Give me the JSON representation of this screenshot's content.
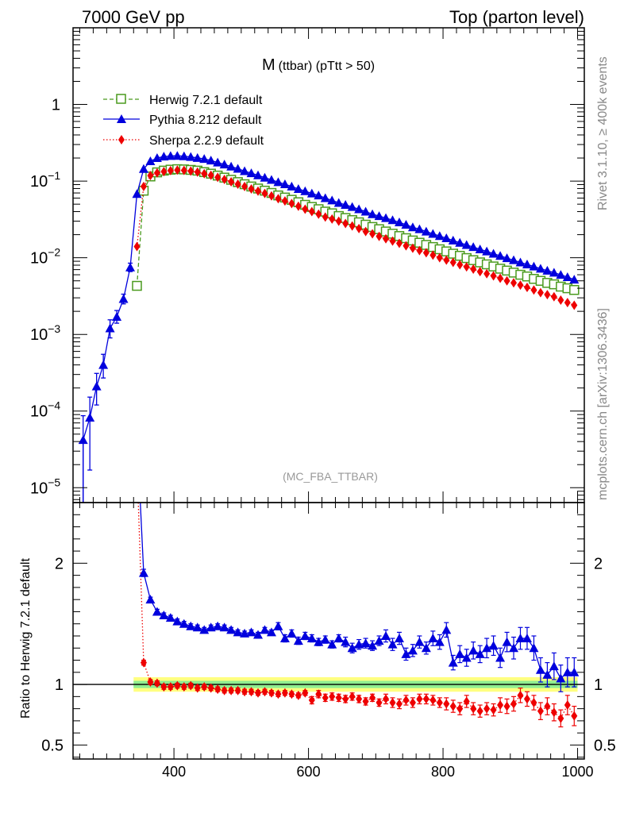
{
  "header": {
    "left": "7000 GeV pp",
    "right": "Top (parton level)"
  },
  "title": {
    "main": "M",
    "sub": "(ttbar) (pTtt > 50)"
  },
  "watermark": "(MC_FBA_TTBAR)",
  "side_text": {
    "top": "Rivet 3.1.10, ≥ 400k events",
    "bottom": "mcplots.cern.ch [arXiv:1306.3436]"
  },
  "ratio_ylabel": "Ratio to Herwig 7.2.1 default",
  "colors": {
    "herwig": "#4a9a1e",
    "pythia": "#0000dd",
    "sherpa": "#ee0000",
    "band_inner": "#90ee90",
    "band_outer": "#ffff80"
  },
  "chart_data": [
    {
      "type": "line",
      "yscale": "log",
      "xlim": [
        250,
        1010
      ],
      "ylim": [
        6.4e-06,
        10
      ],
      "xlabel": "",
      "ylabel": "",
      "legend_position": "top-left",
      "y_ticks": [
        {
          "value": 1e-05,
          "base": "10",
          "exp": "−5"
        },
        {
          "value": 0.0001,
          "base": "10",
          "exp": "−4"
        },
        {
          "value": 0.001,
          "base": "10",
          "exp": "−3"
        },
        {
          "value": 0.01,
          "base": "10",
          "exp": "−2"
        },
        {
          "value": 0.1,
          "base": "10",
          "exp": "−1"
        },
        {
          "value": 1,
          "base": "1",
          "exp": ""
        }
      ],
      "series": [
        {
          "name": "Herwig 7.2.1 default",
          "style": "dashed",
          "marker": "open-square",
          "x": [
            345,
            355,
            365,
            375,
            385,
            395,
            405,
            415,
            425,
            435,
            445,
            455,
            465,
            475,
            485,
            495,
            505,
            515,
            525,
            535,
            545,
            555,
            565,
            575,
            585,
            595,
            605,
            615,
            625,
            635,
            645,
            655,
            665,
            675,
            685,
            695,
            705,
            715,
            725,
            735,
            745,
            755,
            765,
            775,
            785,
            795,
            805,
            815,
            825,
            835,
            845,
            855,
            865,
            875,
            885,
            895,
            905,
            915,
            925,
            935,
            945,
            955,
            965,
            975,
            985,
            995
          ],
          "y": [
            0.0043,
            0.075,
            0.115,
            0.13,
            0.137,
            0.141,
            0.143,
            0.142,
            0.14,
            0.137,
            0.131,
            0.125,
            0.118,
            0.111,
            0.104,
            0.097,
            0.091,
            0.085,
            0.08,
            0.075,
            0.07,
            0.065,
            0.061,
            0.057,
            0.053,
            0.049,
            0.046,
            0.043,
            0.04,
            0.038,
            0.035,
            0.033,
            0.031,
            0.029,
            0.027,
            0.0252,
            0.0236,
            0.022,
            0.0206,
            0.0192,
            0.018,
            0.0168,
            0.0157,
            0.0147,
            0.0138,
            0.0129,
            0.0121,
            0.0113,
            0.0106,
            0.0099,
            0.0093,
            0.0087,
            0.0082,
            0.0077,
            0.0072,
            0.0068,
            0.0064,
            0.006,
            0.0057,
            0.0053,
            0.005,
            0.0047,
            0.0045,
            0.0042,
            0.004,
            0.0038
          ]
        },
        {
          "name": "Pythia 8.212 default",
          "style": "solid",
          "marker": "filled-triangle",
          "x": [
            265,
            275,
            285,
            295,
            305,
            315,
            325,
            335,
            345,
            355,
            365,
            375,
            385,
            395,
            405,
            415,
            425,
            435,
            445,
            455,
            465,
            475,
            485,
            495,
            505,
            515,
            525,
            535,
            545,
            555,
            565,
            575,
            585,
            595,
            605,
            615,
            625,
            635,
            645,
            655,
            665,
            675,
            685,
            695,
            705,
            715,
            725,
            735,
            745,
            755,
            765,
            775,
            785,
            795,
            805,
            815,
            825,
            835,
            845,
            855,
            865,
            875,
            885,
            895,
            905,
            915,
            925,
            935,
            945,
            955,
            965,
            975,
            985,
            995
          ],
          "y": [
            4.2e-05,
            8.2e-05,
            0.00021,
            0.0004,
            0.0012,
            0.0017,
            0.0029,
            0.0075,
            0.068,
            0.144,
            0.182,
            0.2,
            0.209,
            0.213,
            0.214,
            0.211,
            0.207,
            0.201,
            0.195,
            0.186,
            0.175,
            0.165,
            0.155,
            0.145,
            0.135,
            0.127,
            0.119,
            0.111,
            0.104,
            0.097,
            0.091,
            0.085,
            0.079,
            0.074,
            0.069,
            0.065,
            0.06,
            0.056,
            0.052,
            0.049,
            0.046,
            0.043,
            0.04,
            0.037,
            0.035,
            0.033,
            0.031,
            0.029,
            0.027,
            0.025,
            0.0236,
            0.022,
            0.0205,
            0.0192,
            0.018,
            0.0168,
            0.0157,
            0.0147,
            0.0138,
            0.0129,
            0.0121,
            0.0113,
            0.0106,
            0.0099,
            0.0093,
            0.0087,
            0.0082,
            0.0077,
            0.0072,
            0.0068,
            0.0064,
            0.006,
            0.0056,
            0.0052
          ],
          "err_low": [
            4e-05,
            6.5e-05,
            9e-05,
            0.00013,
            0.0003,
            0.0003,
            0.0004,
            0.0009,
            0,
            0,
            0,
            0,
            0,
            0,
            0,
            0,
            0,
            0,
            0,
            0,
            0,
            0,
            0,
            0,
            0,
            0,
            0,
            0,
            0,
            0,
            0,
            0,
            0,
            0,
            0,
            0,
            0,
            0,
            0,
            0,
            0,
            0,
            0,
            0,
            0,
            0,
            0,
            0,
            0,
            0,
            0,
            0,
            0,
            0,
            0,
            0,
            0,
            0,
            0,
            0,
            0,
            0,
            0,
            0,
            0,
            0,
            0,
            0,
            0,
            0,
            0,
            0,
            0,
            0
          ],
          "err_high": [
            4.5e-05,
            7e-05,
            0.0001,
            0.00015,
            0.00035,
            0.00035,
            0.00045,
            0.001,
            0,
            0,
            0,
            0,
            0,
            0,
            0,
            0,
            0,
            0,
            0,
            0,
            0,
            0,
            0,
            0,
            0,
            0,
            0,
            0,
            0,
            0,
            0,
            0,
            0,
            0,
            0,
            0,
            0,
            0,
            0,
            0,
            0,
            0,
            0,
            0,
            0,
            0,
            0,
            0,
            0,
            0,
            0,
            0,
            0,
            0,
            0,
            0,
            0,
            0,
            0,
            0,
            0,
            0,
            0,
            0,
            0,
            0,
            0,
            0,
            0,
            0,
            0,
            0,
            0,
            0
          ]
        },
        {
          "name": "Sherpa 2.2.9 default",
          "style": "dotted",
          "marker": "filled-diamond",
          "x": [
            345,
            355,
            365,
            375,
            385,
            395,
            405,
            415,
            425,
            435,
            445,
            455,
            465,
            475,
            485,
            495,
            505,
            515,
            525,
            535,
            545,
            555,
            565,
            575,
            585,
            595,
            605,
            615,
            625,
            635,
            645,
            655,
            665,
            675,
            685,
            695,
            705,
            715,
            725,
            735,
            745,
            755,
            765,
            775,
            785,
            795,
            805,
            815,
            825,
            835,
            845,
            855,
            865,
            875,
            885,
            895,
            905,
            915,
            925,
            935,
            945,
            955,
            965,
            975,
            985,
            995
          ],
          "y": [
            0.014,
            0.085,
            0.118,
            0.128,
            0.133,
            0.137,
            0.139,
            0.138,
            0.135,
            0.131,
            0.125,
            0.119,
            0.112,
            0.105,
            0.098,
            0.091,
            0.085,
            0.079,
            0.074,
            0.069,
            0.064,
            0.059,
            0.055,
            0.051,
            0.047,
            0.043,
            0.04,
            0.037,
            0.034,
            0.032,
            0.03,
            0.028,
            0.026,
            0.024,
            0.022,
            0.0205,
            0.019,
            0.0177,
            0.0165,
            0.0154,
            0.0143,
            0.0133,
            0.0124,
            0.0116,
            0.0108,
            0.01,
            0.0093,
            0.0087,
            0.0081,
            0.0076,
            0.0071,
            0.0066,
            0.0062,
            0.0058,
            0.0054,
            0.005,
            0.0047,
            0.0044,
            0.0041,
            0.0038,
            0.0035,
            0.0033,
            0.0031,
            0.0028,
            0.0026,
            0.0024
          ]
        }
      ]
    },
    {
      "type": "line",
      "xlim": [
        250,
        1010
      ],
      "ylim": [
        0.385,
        2.5
      ],
      "ylabel": "Ratio to Herwig 7.2.1 default",
      "x_ticks": [
        400,
        600,
        800,
        1000
      ],
      "y_ticks": [
        {
          "value": 0.5,
          "label": "0.5"
        },
        {
          "value": 1,
          "label": "1"
        },
        {
          "value": 2,
          "label": "2"
        }
      ],
      "reference_line": 1,
      "band": {
        "x_start": 340,
        "x_end": 1000,
        "inner": 0.03,
        "outer": 0.06
      },
      "series": [
        {
          "name": "Pythia 8.212 default",
          "x": [
            355,
            365,
            375,
            385,
            395,
            405,
            415,
            425,
            435,
            445,
            455,
            465,
            475,
            485,
            495,
            505,
            515,
            525,
            535,
            545,
            555,
            565,
            575,
            585,
            595,
            605,
            615,
            625,
            635,
            645,
            655,
            665,
            675,
            685,
            695,
            705,
            715,
            725,
            735,
            745,
            755,
            765,
            775,
            785,
            795,
            805,
            815,
            825,
            835,
            845,
            855,
            865,
            875,
            885,
            895,
            905,
            915,
            925,
            935,
            945,
            955,
            965,
            975,
            985,
            995
          ],
          "y": [
            1.92,
            1.7,
            1.6,
            1.57,
            1.55,
            1.52,
            1.5,
            1.48,
            1.47,
            1.45,
            1.47,
            1.48,
            1.47,
            1.45,
            1.43,
            1.42,
            1.43,
            1.41,
            1.45,
            1.43,
            1.48,
            1.38,
            1.42,
            1.36,
            1.4,
            1.38,
            1.35,
            1.37,
            1.33,
            1.38,
            1.35,
            1.3,
            1.33,
            1.34,
            1.32,
            1.36,
            1.4,
            1.33,
            1.38,
            1.25,
            1.28,
            1.35,
            1.3,
            1.38,
            1.35,
            1.45,
            1.18,
            1.25,
            1.22,
            1.28,
            1.25,
            1.3,
            1.32,
            1.22,
            1.35,
            1.3,
            1.38,
            1.38,
            1.3,
            1.12,
            1.08,
            1.15,
            1.05,
            1.1,
            1.1
          ],
          "err": [
            0.03,
            0.02,
            0.02,
            0.02,
            0.02,
            0.02,
            0.02,
            0.02,
            0.02,
            0.02,
            0.02,
            0.02,
            0.02,
            0.02,
            0.02,
            0.02,
            0.02,
            0.02,
            0.02,
            0.02,
            0.03,
            0.03,
            0.03,
            0.03,
            0.03,
            0.03,
            0.03,
            0.03,
            0.03,
            0.03,
            0.04,
            0.04,
            0.04,
            0.04,
            0.04,
            0.04,
            0.05,
            0.05,
            0.05,
            0.05,
            0.05,
            0.05,
            0.05,
            0.06,
            0.06,
            0.06,
            0.06,
            0.07,
            0.07,
            0.07,
            0.07,
            0.08,
            0.08,
            0.08,
            0.08,
            0.09,
            0.09,
            0.09,
            0.1,
            0.1,
            0.1,
            0.11,
            0.11,
            0.12,
            0.12
          ]
        },
        {
          "name": "Sherpa 2.2.9 default",
          "x": [
            355,
            365,
            375,
            385,
            395,
            405,
            415,
            425,
            435,
            445,
            455,
            465,
            475,
            485,
            495,
            505,
            515,
            525,
            535,
            545,
            555,
            565,
            575,
            585,
            595,
            605,
            615,
            625,
            635,
            645,
            655,
            665,
            675,
            685,
            695,
            705,
            715,
            725,
            735,
            745,
            755,
            765,
            775,
            785,
            795,
            805,
            815,
            825,
            835,
            845,
            855,
            865,
            875,
            885,
            895,
            905,
            915,
            925,
            935,
            945,
            955,
            965,
            975,
            985,
            995
          ],
          "y": [
            1.18,
            1.02,
            1.01,
            0.98,
            0.98,
            0.99,
            0.98,
            0.99,
            0.97,
            0.98,
            0.97,
            0.96,
            0.95,
            0.95,
            0.95,
            0.94,
            0.94,
            0.93,
            0.94,
            0.93,
            0.92,
            0.93,
            0.92,
            0.91,
            0.93,
            0.87,
            0.92,
            0.89,
            0.9,
            0.89,
            0.88,
            0.9,
            0.88,
            0.86,
            0.89,
            0.85,
            0.88,
            0.85,
            0.84,
            0.87,
            0.85,
            0.88,
            0.88,
            0.87,
            0.85,
            0.84,
            0.82,
            0.8,
            0.86,
            0.8,
            0.78,
            0.8,
            0.79,
            0.83,
            0.82,
            0.84,
            0.91,
            0.88,
            0.85,
            0.78,
            0.82,
            0.77,
            0.72,
            0.83,
            0.74
          ],
          "err": [
            0.02,
            0.02,
            0.02,
            0.02,
            0.02,
            0.02,
            0.02,
            0.02,
            0.02,
            0.02,
            0.02,
            0.02,
            0.02,
            0.02,
            0.02,
            0.02,
            0.02,
            0.02,
            0.02,
            0.02,
            0.02,
            0.02,
            0.02,
            0.02,
            0.02,
            0.03,
            0.03,
            0.03,
            0.03,
            0.03,
            0.03,
            0.03,
            0.03,
            0.03,
            0.03,
            0.03,
            0.04,
            0.04,
            0.04,
            0.04,
            0.04,
            0.04,
            0.04,
            0.04,
            0.04,
            0.05,
            0.05,
            0.05,
            0.05,
            0.05,
            0.05,
            0.05,
            0.05,
            0.06,
            0.06,
            0.06,
            0.06,
            0.06,
            0.06,
            0.07,
            0.07,
            0.07,
            0.07,
            0.08,
            0.08
          ]
        }
      ]
    }
  ]
}
